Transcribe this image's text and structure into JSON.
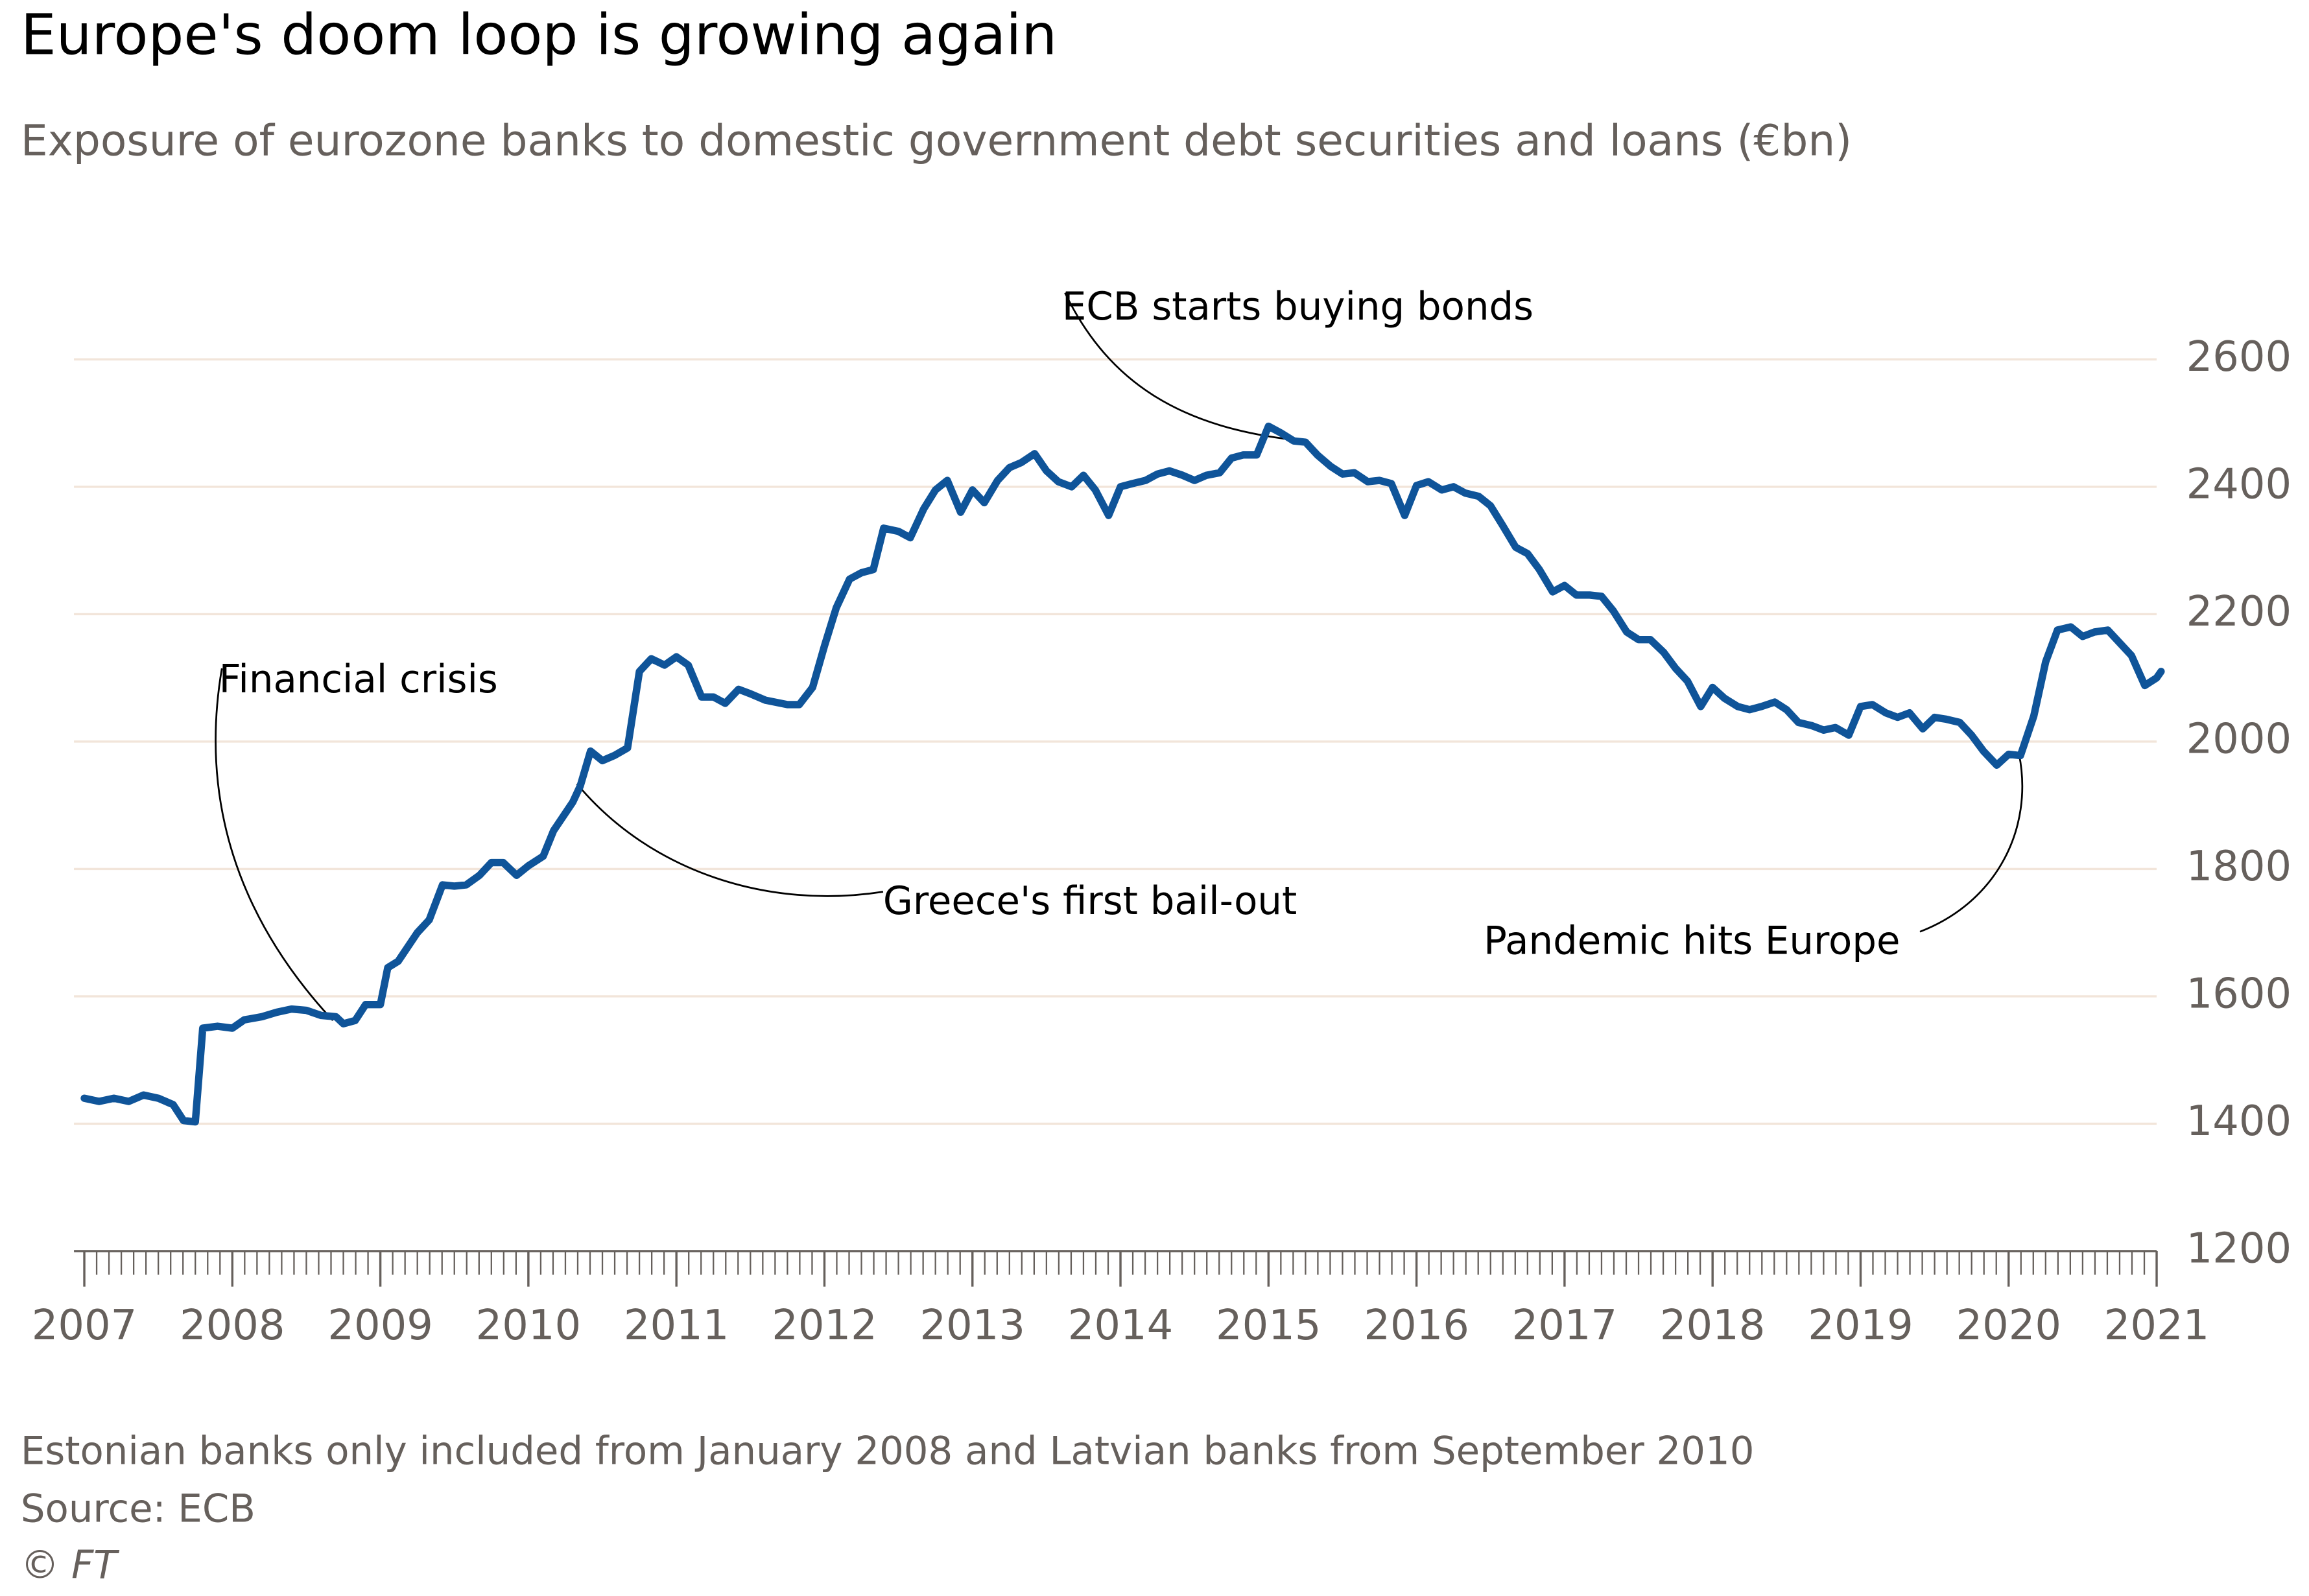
{
  "chart_data": {
    "type": "line",
    "title": "Europe's doom loop is growing again",
    "subtitle": "Exposure of eurozone banks to domestic government debt securities and loans (€bn)",
    "note": "Estonian banks only included from January 2008 and Latvian banks from September 2010",
    "source": "Source: ECB",
    "credit": "© FT",
    "annotations": [
      "Financial crisis",
      "Greece's first bail-out",
      "ECB starts buying bonds",
      "Pandemic hits Europe"
    ],
    "color": "#0f5499",
    "grid": true,
    "xlim": [
      2007,
      2021
    ],
    "xticks": [
      2007,
      2008,
      2009,
      2010,
      2011,
      2012,
      2013,
      2014,
      2015,
      2016,
      2017,
      2018,
      2019,
      2020,
      2021
    ],
    "ylim": [
      1200,
      2600
    ],
    "yticks": [
      1200,
      1400,
      1600,
      1800,
      2000,
      2200,
      2400,
      2600
    ],
    "x": [
      2007.0,
      2007.1,
      2007.2,
      2007.3,
      2007.4,
      2007.5,
      2007.6,
      2007.67,
      2007.75,
      2007.8,
      2007.9,
      2008.0,
      2008.08,
      2008.2,
      2008.3,
      2008.4,
      2008.5,
      2008.6,
      2008.7,
      2008.75,
      2008.83,
      2008.9,
      2009.0,
      2009.05,
      2009.12,
      2009.25,
      2009.33,
      2009.42,
      2009.5,
      2009.58,
      2009.67,
      2009.75,
      2009.83,
      2009.92,
      2010.0,
      2010.1,
      2010.17,
      2010.3,
      2010.35,
      2010.42,
      2010.5,
      2010.58,
      2010.67,
      2010.75,
      2010.83,
      2010.92,
      2011.0,
      2011.08,
      2011.17,
      2011.25,
      2011.33,
      2011.42,
      2011.5,
      2011.6,
      2011.75,
      2011.83,
      2011.92,
      2012.0,
      2012.08,
      2012.17,
      2012.25,
      2012.33,
      2012.4,
      2012.5,
      2012.58,
      2012.67,
      2012.75,
      2012.83,
      2012.92,
      2013.0,
      2013.08,
      2013.17,
      2013.25,
      2013.33,
      2013.42,
      2013.5,
      2013.58,
      2013.67,
      2013.75,
      2013.83,
      2013.92,
      2014.0,
      2014.08,
      2014.17,
      2014.25,
      2014.33,
      2014.42,
      2014.5,
      2014.58,
      2014.67,
      2014.75,
      2014.83,
      2014.92,
      2015.0,
      2015.08,
      2015.17,
      2015.25,
      2015.33,
      2015.42,
      2015.5,
      2015.58,
      2015.67,
      2015.75,
      2015.83,
      2015.92,
      2016.0,
      2016.08,
      2016.17,
      2016.25,
      2016.33,
      2016.42,
      2016.5,
      2016.58,
      2016.67,
      2016.75,
      2016.83,
      2016.92,
      2017.0,
      2017.08,
      2017.17,
      2017.25,
      2017.33,
      2017.42,
      2017.5,
      2017.58,
      2017.67,
      2017.75,
      2017.83,
      2017.92,
      2018.0,
      2018.08,
      2018.17,
      2018.25,
      2018.33,
      2018.42,
      2018.5,
      2018.58,
      2018.67,
      2018.75,
      2018.83,
      2018.92,
      2019.0,
      2019.08,
      2019.17,
      2019.25,
      2019.33,
      2019.42,
      2019.5,
      2019.58,
      2019.67,
      2019.75,
      2019.83,
      2019.92,
      2020.0,
      2020.08,
      2020.17,
      2020.25,
      2020.33,
      2020.42,
      2020.5,
      2020.58,
      2020.67,
      2020.75,
      2020.83,
      2020.92,
      2021.0,
      2021.03
    ],
    "values": [
      1440,
      1435,
      1440,
      1435,
      1445,
      1440,
      1430,
      1405,
      1403,
      1550,
      1553,
      1550,
      1563,
      1568,
      1575,
      1580,
      1578,
      1570,
      1568,
      1557,
      1562,
      1587,
      1587,
      1645,
      1655,
      1700,
      1720,
      1775,
      1773,
      1775,
      1790,
      1810,
      1810,
      1790,
      1805,
      1820,
      1860,
      1905,
      1930,
      1985,
      1970,
      1978,
      1990,
      2110,
      2130,
      2120,
      2133,
      2120,
      2070,
      2070,
      2060,
      2082,
      2075,
      2065,
      2058,
      2058,
      2085,
      2150,
      2210,
      2255,
      2265,
      2270,
      2335,
      2330,
      2320,
      2365,
      2395,
      2410,
      2360,
      2395,
      2375,
      2410,
      2430,
      2438,
      2452,
      2425,
      2408,
      2400,
      2418,
      2395,
      2355,
      2400,
      2405,
      2410,
      2420,
      2425,
      2418,
      2410,
      2418,
      2422,
      2445,
      2450,
      2450,
      2495,
      2485,
      2472,
      2470,
      2450,
      2432,
      2420,
      2422,
      2408,
      2410,
      2405,
      2355,
      2402,
      2408,
      2395,
      2400,
      2390,
      2385,
      2370,
      2340,
      2305,
      2295,
      2270,
      2235,
      2245,
      2230,
      2230,
      2228,
      2205,
      2172,
      2160,
      2160,
      2140,
      2115,
      2095,
      2055,
      2085,
      2068,
      2055,
      2050,
      2055,
      2062,
      2050,
      2030,
      2025,
      2018,
      2022,
      2010,
      2055,
      2058,
      2045,
      2038,
      2045,
      2020,
      2038,
      2035,
      2030,
      2010,
      1985,
      1963,
      1980,
      1978,
      2040,
      2125,
      2175,
      2180,
      2165,
      2172,
      2175,
      2155,
      2135,
      2088,
      2100,
      2110
    ]
  }
}
